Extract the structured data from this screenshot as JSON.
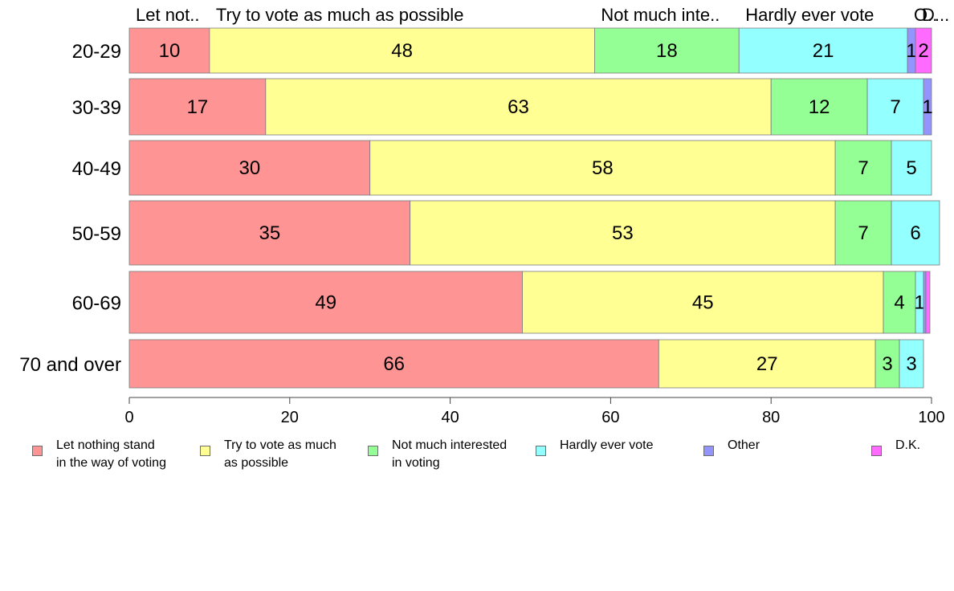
{
  "chart_data": {
    "type": "bar",
    "orientation": "horizontal",
    "stacked": true,
    "categories": [
      "20-29",
      "30-39",
      "40-49",
      "50-59",
      "60-69",
      "70 and over"
    ],
    "series": [
      {
        "name": "Let nothing stand in the way of voting",
        "legend_label": "Let nothing stand\nin the way of voting",
        "top_label": "Let not..",
        "color": "#ff9494",
        "values": [
          10,
          17,
          30,
          35,
          49,
          66
        ]
      },
      {
        "name": "Try to vote as much as possible",
        "legend_label": "Try to vote as much\nas possible",
        "top_label": "Try to vote as much as possible",
        "color": "#ffff94",
        "values": [
          48,
          63,
          58,
          53,
          45,
          27
        ]
      },
      {
        "name": "Not much interested in voting",
        "legend_label": "Not much interested\nin voting",
        "top_label": "Not much inte..",
        "color": "#94ff94",
        "values": [
          18,
          12,
          7,
          7,
          4,
          3
        ]
      },
      {
        "name": "Hardly ever vote",
        "legend_label": "Hardly ever vote",
        "top_label": "Hardly ever vote",
        "color": "#94ffff",
        "values": [
          21,
          7,
          5,
          6,
          1,
          3
        ]
      },
      {
        "name": "Other",
        "legend_label": "Other",
        "top_label": "O..",
        "color": "#9494ff",
        "values": [
          1,
          1,
          0,
          0,
          0.3,
          0
        ]
      },
      {
        "name": "D.K.",
        "legend_label": "D.K.",
        "top_label": "D...",
        "color": "#ff6bff",
        "values": [
          2,
          0,
          0,
          0,
          0.5,
          0
        ]
      }
    ],
    "data_labels": [
      [
        "10",
        "48",
        "18",
        "21",
        "1",
        "2"
      ],
      [
        "17",
        "63",
        "12",
        "7",
        "1",
        ""
      ],
      [
        "30",
        "58",
        "7",
        "5",
        "",
        ""
      ],
      [
        "35",
        "53",
        "7",
        "6",
        "",
        ""
      ],
      [
        "49",
        "45",
        "4",
        "1",
        "",
        ""
      ],
      [
        "66",
        "27",
        "3",
        "3",
        "",
        ""
      ]
    ],
    "xlim": [
      0,
      100
    ],
    "xticks": [
      0,
      20,
      40,
      60,
      80,
      100
    ],
    "title": "",
    "xlabel": "",
    "ylabel": "",
    "grid": false,
    "legend_position": "bottom"
  }
}
